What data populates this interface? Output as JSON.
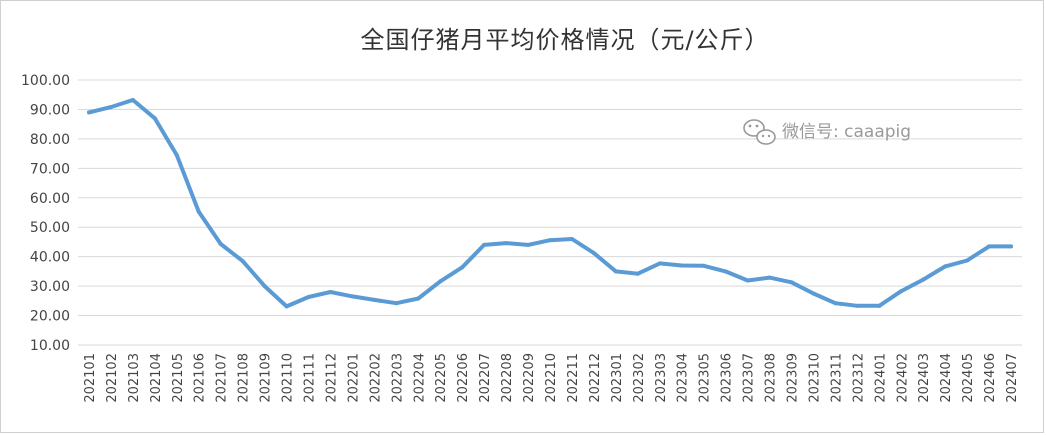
{
  "watermark": {
    "text": "微信号: caaapig",
    "icon": "wechat-icon"
  },
  "colors": {
    "line": "#5B9BD5",
    "grid": "#d9d9d9",
    "text": "#444444",
    "watermark": "#9a9a9a"
  },
  "chart_data": {
    "type": "line",
    "title": "全国仔猪月平均价格情况（元/公斤）",
    "xlabel": "",
    "ylabel": "",
    "ylim": [
      10,
      100
    ],
    "ytick_labels": [
      "100.00",
      "90.00",
      "80.00",
      "70.00",
      "60.00",
      "50.00",
      "40.00",
      "30.00",
      "20.00",
      "10.00"
    ],
    "yticks": [
      100,
      90,
      80,
      70,
      60,
      50,
      40,
      30,
      20,
      10
    ],
    "grid": true,
    "legend": "none",
    "categories": [
      "202101",
      "202102",
      "202103",
      "202104",
      "202105",
      "202106",
      "202107",
      "202108",
      "202109",
      "202110",
      "202111",
      "202112",
      "202201",
      "202202",
      "202203",
      "202204",
      "202205",
      "202206",
      "202207",
      "202208",
      "202209",
      "202210",
      "202211",
      "202212",
      "202301",
      "202302",
      "202303",
      "202304",
      "202305",
      "202306",
      "202307",
      "202308",
      "202309",
      "202310",
      "202311",
      "202312",
      "202401",
      "202402",
      "202403",
      "202404",
      "202405",
      "202406",
      "202407"
    ],
    "series": [
      {
        "values": [
          89.0,
          90.8,
          93.2,
          87.0,
          74.5,
          55.3,
          44.3,
          38.5,
          30.0,
          23.1,
          26.3,
          28.0,
          26.5,
          25.3,
          24.2,
          25.8,
          31.6,
          36.4,
          44.0,
          44.6,
          44.0,
          45.6,
          46.0,
          41.2,
          35.0,
          34.2,
          37.7,
          37.0,
          36.9,
          35.0,
          31.9,
          32.9,
          31.3,
          27.5,
          24.2,
          23.3,
          23.3,
          28.3,
          32.2,
          36.7,
          38.7,
          43.5,
          43.5
        ]
      }
    ]
  }
}
